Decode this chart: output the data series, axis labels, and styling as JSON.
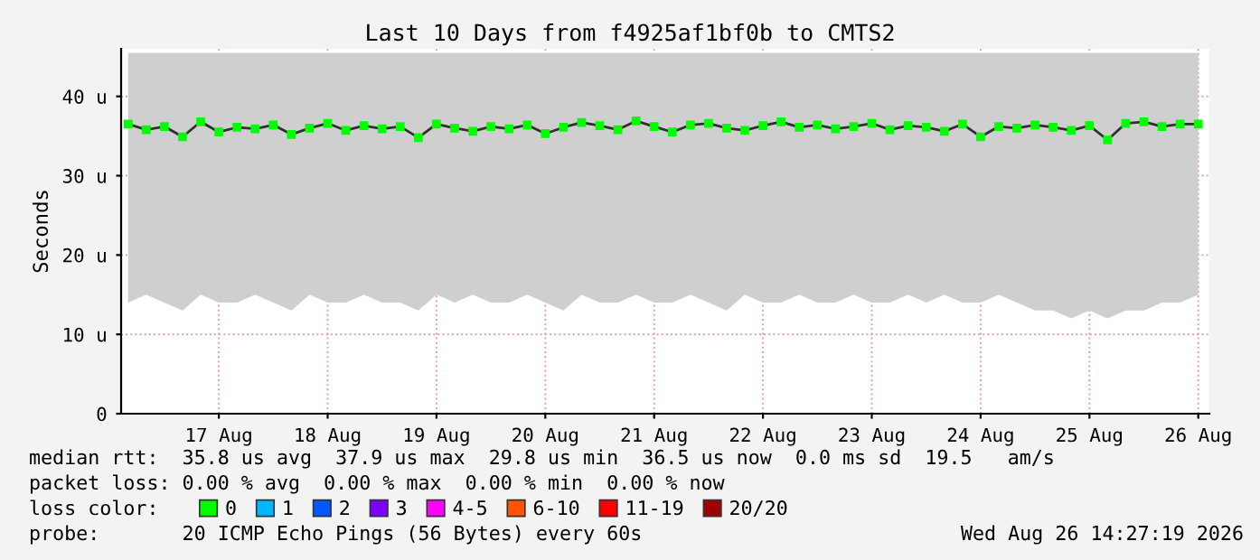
{
  "chart_data": {
    "type": "line",
    "title": "Last 10 Days from f4925af1bf0b to CMTS2",
    "ylabel": "Seconds",
    "x": [
      "2026-08-16T16:00",
      "2026-08-16T20:00",
      "2026-08-17T00:00",
      "2026-08-17T04:00",
      "2026-08-17T08:00",
      "2026-08-17T12:00",
      "2026-08-17T16:00",
      "2026-08-17T20:00",
      "2026-08-18T00:00",
      "2026-08-18T04:00",
      "2026-08-18T08:00",
      "2026-08-18T12:00",
      "2026-08-18T16:00",
      "2026-08-18T20:00",
      "2026-08-19T00:00",
      "2026-08-19T04:00",
      "2026-08-19T08:00",
      "2026-08-19T12:00",
      "2026-08-19T16:00",
      "2026-08-19T20:00",
      "2026-08-20T00:00",
      "2026-08-20T04:00",
      "2026-08-20T08:00",
      "2026-08-20T12:00",
      "2026-08-20T16:00",
      "2026-08-20T20:00",
      "2026-08-21T00:00",
      "2026-08-21T04:00",
      "2026-08-21T08:00",
      "2026-08-21T12:00",
      "2026-08-21T16:00",
      "2026-08-21T20:00",
      "2026-08-22T00:00",
      "2026-08-22T04:00",
      "2026-08-22T08:00",
      "2026-08-22T12:00",
      "2026-08-22T16:00",
      "2026-08-22T20:00",
      "2026-08-23T00:00",
      "2026-08-23T04:00",
      "2026-08-23T08:00",
      "2026-08-23T12:00",
      "2026-08-23T16:00",
      "2026-08-23T20:00",
      "2026-08-24T00:00",
      "2026-08-24T04:00",
      "2026-08-24T08:00",
      "2026-08-24T12:00",
      "2026-08-24T16:00",
      "2026-08-24T20:00",
      "2026-08-25T00:00",
      "2026-08-25T04:00",
      "2026-08-25T08:00",
      "2026-08-25T12:00",
      "2026-08-25T16:00",
      "2026-08-25T20:00",
      "2026-08-26T00:00",
      "2026-08-26T04:00",
      "2026-08-26T08:00",
      "2026-08-26T12:00"
    ],
    "series": [
      {
        "name": "0",
        "color": "#00ff00",
        "values": [
          36.5,
          35.8,
          36.2,
          34.9,
          36.8,
          35.5,
          36.1,
          35.9,
          36.4,
          35.2,
          36.0,
          36.6,
          35.7,
          36.3,
          35.9,
          36.2,
          34.8,
          36.5,
          36.0,
          35.6,
          36.2,
          35.9,
          36.4,
          35.3,
          36.1,
          36.7,
          36.3,
          35.8,
          36.9,
          36.2,
          35.5,
          36.4,
          36.6,
          36.0,
          35.7,
          36.3,
          36.8,
          36.1,
          36.4,
          35.9,
          36.2,
          36.6,
          35.8,
          36.3,
          36.1,
          35.6,
          36.5,
          34.9,
          36.2,
          36.0,
          36.4,
          36.1,
          35.7,
          36.3,
          34.5,
          36.6,
          36.8,
          36.2,
          36.5,
          36.5
        ],
        "lower": [
          14,
          15,
          14,
          13,
          15,
          14,
          14,
          15,
          14,
          13,
          15,
          14,
          14,
          15,
          14,
          14,
          13,
          15,
          14,
          15,
          14,
          14,
          15,
          14,
          13,
          15,
          14,
          14,
          15,
          14,
          14,
          15,
          14,
          13,
          15,
          14,
          14,
          15,
          14,
          14,
          15,
          14,
          14,
          15,
          14,
          15,
          14,
          14,
          15,
          14,
          13,
          13,
          12,
          13,
          12,
          13,
          13,
          14,
          14,
          15
        ],
        "upper": [
          45.5,
          45.5,
          45.5,
          45.5,
          45.5,
          45.5,
          45.5,
          45.5,
          45.5,
          45.5,
          45.5,
          45.5,
          45.5,
          45.5,
          45.5,
          45.5,
          45.5,
          45.5,
          45.5,
          45.5,
          45.5,
          45.5,
          45.5,
          45.5,
          45.5,
          45.5,
          45.5,
          45.5,
          45.5,
          45.5,
          45.5,
          45.5,
          45.5,
          45.5,
          45.5,
          45.5,
          45.5,
          45.5,
          45.5,
          45.5,
          45.5,
          45.5,
          45.5,
          45.5,
          45.5,
          45.5,
          45.5,
          45.5,
          45.5,
          45.5,
          45.5,
          45.5,
          45.5,
          45.5,
          45.5,
          45.5,
          45.5,
          45.5,
          45.5,
          45.5
        ]
      },
      {
        "name": "1",
        "color": "#00b8ff",
        "values": [
          null,
          null,
          null,
          null,
          null,
          null,
          null,
          null,
          null,
          null,
          null,
          null,
          null,
          null,
          null,
          null,
          null,
          null,
          null,
          null,
          null,
          null,
          null,
          null,
          null,
          null,
          null,
          null,
          null,
          null,
          null,
          null,
          null,
          null,
          null,
          null,
          null,
          null,
          null,
          null,
          null,
          null,
          null,
          null,
          null,
          null,
          null,
          null,
          null,
          null,
          null,
          null,
          null,
          null,
          null,
          null,
          null,
          null,
          null,
          null
        ]
      },
      {
        "name": "2",
        "color": "#0059ff",
        "values": [
          null,
          null,
          null,
          null,
          null,
          null,
          null,
          null,
          null,
          null,
          null,
          null,
          null,
          null,
          null,
          null,
          null,
          null,
          null,
          null,
          null,
          null,
          null,
          null,
          null,
          null,
          null,
          null,
          null,
          null,
          null,
          null,
          null,
          null,
          null,
          null,
          null,
          null,
          null,
          null,
          null,
          null,
          null,
          null,
          null,
          null,
          null,
          null,
          null,
          null,
          null,
          null,
          null,
          null,
          null,
          null,
          null,
          null,
          null,
          null
        ]
      },
      {
        "name": "3",
        "color": "#7e00ff",
        "values": [
          null,
          null,
          null,
          null,
          null,
          null,
          null,
          null,
          null,
          null,
          null,
          null,
          null,
          null,
          null,
          null,
          null,
          null,
          null,
          null,
          null,
          null,
          null,
          null,
          null,
          null,
          null,
          null,
          null,
          null,
          null,
          null,
          null,
          null,
          null,
          null,
          null,
          null,
          null,
          null,
          null,
          null,
          null,
          null,
          null,
          null,
          null,
          null,
          null,
          null,
          null,
          null,
          null,
          null,
          null,
          null,
          null,
          null,
          null,
          null
        ]
      },
      {
        "name": "4-5",
        "color": "#ff00ff",
        "values": [
          null,
          null,
          null,
          null,
          null,
          null,
          null,
          null,
          null,
          null,
          null,
          null,
          null,
          null,
          null,
          null,
          null,
          null,
          null,
          null,
          null,
          null,
          null,
          null,
          null,
          null,
          null,
          null,
          null,
          null,
          null,
          null,
          null,
          null,
          null,
          null,
          null,
          null,
          null,
          null,
          null,
          null,
          null,
          null,
          null,
          null,
          null,
          null,
          null,
          null,
          null,
          null,
          null,
          null,
          null,
          null,
          null,
          null,
          null,
          null
        ]
      },
      {
        "name": "6-10",
        "color": "#ff5500",
        "values": [
          null,
          null,
          null,
          null,
          null,
          null,
          null,
          null,
          null,
          null,
          null,
          null,
          null,
          null,
          null,
          null,
          null,
          null,
          null,
          null,
          null,
          null,
          null,
          null,
          null,
          null,
          null,
          null,
          null,
          null,
          null,
          null,
          null,
          null,
          null,
          null,
          null,
          null,
          null,
          null,
          null,
          null,
          null,
          null,
          null,
          null,
          null,
          null,
          null,
          null,
          null,
          null,
          null,
          null,
          null,
          null,
          null,
          null,
          null,
          null
        ]
      },
      {
        "name": "11-19",
        "color": "#ff0000",
        "values": [
          null,
          null,
          null,
          null,
          null,
          null,
          null,
          null,
          null,
          null,
          null,
          null,
          null,
          null,
          null,
          null,
          null,
          null,
          null,
          null,
          null,
          null,
          null,
          null,
          null,
          null,
          null,
          null,
          null,
          null,
          null,
          null,
          null,
          null,
          null,
          null,
          null,
          null,
          null,
          null,
          null,
          null,
          null,
          null,
          null,
          null,
          null,
          null,
          null,
          null,
          null,
          null,
          null,
          null,
          null,
          null,
          null,
          null,
          null,
          null
        ]
      },
      {
        "name": "20/20",
        "color": "#a10000",
        "values": [
          null,
          null,
          null,
          null,
          null,
          null,
          null,
          null,
          null,
          null,
          null,
          null,
          null,
          null,
          null,
          null,
          null,
          null,
          null,
          null,
          null,
          null,
          null,
          null,
          null,
          null,
          null,
          null,
          null,
          null,
          null,
          null,
          null,
          null,
          null,
          null,
          null,
          null,
          null,
          null,
          null,
          null,
          null,
          null,
          null,
          null,
          null,
          null,
          null,
          null,
          null,
          null,
          null,
          null,
          null,
          null,
          null,
          null,
          null,
          null
        ]
      }
    ],
    "xlim": [
      "2026-08-16T14:27",
      "2026-08-26T14:27"
    ],
    "xticks": [
      {
        "value": "2026-08-17T12:00",
        "label": "17 Aug"
      },
      {
        "value": "2026-08-18T12:00",
        "label": "18 Aug"
      },
      {
        "value": "2026-08-19T12:00",
        "label": "19 Aug"
      },
      {
        "value": "2026-08-20T12:00",
        "label": "20 Aug"
      },
      {
        "value": "2026-08-21T12:00",
        "label": "21 Aug"
      },
      {
        "value": "2026-08-22T12:00",
        "label": "22 Aug"
      },
      {
        "value": "2026-08-23T12:00",
        "label": "23 Aug"
      },
      {
        "value": "2026-08-24T12:00",
        "label": "24 Aug"
      },
      {
        "value": "2026-08-25T12:00",
        "label": "25 Aug"
      },
      {
        "value": "2026-08-26T12:00",
        "label": "26 Aug"
      }
    ],
    "ylim": [
      0,
      46
    ],
    "yticks": [
      0,
      {
        "value": 10,
        "label": "10 u"
      },
      {
        "value": 20,
        "label": "20 u"
      },
      {
        "value": 30,
        "label": "30 u"
      },
      {
        "value": 40,
        "label": "40 u"
      }
    ],
    "grid": true,
    "marker": "square",
    "line_style": "solid",
    "legend": "bottom",
    "legend_title": "loss color:",
    "annotations": [
      "median rtt:  35.8 us avg  37.9 us max  29.8 us min  36.5 us now  0.0 ms sd  19.5   am/s",
      "packet loss: 0.00 % avg  0.00 % max  0.00 % min  0.00 % now",
      "probe:       20 ICMP Echo Pings (56 Bytes) every 60s",
      "Wed Aug 26 14:27:19 2026"
    ]
  }
}
